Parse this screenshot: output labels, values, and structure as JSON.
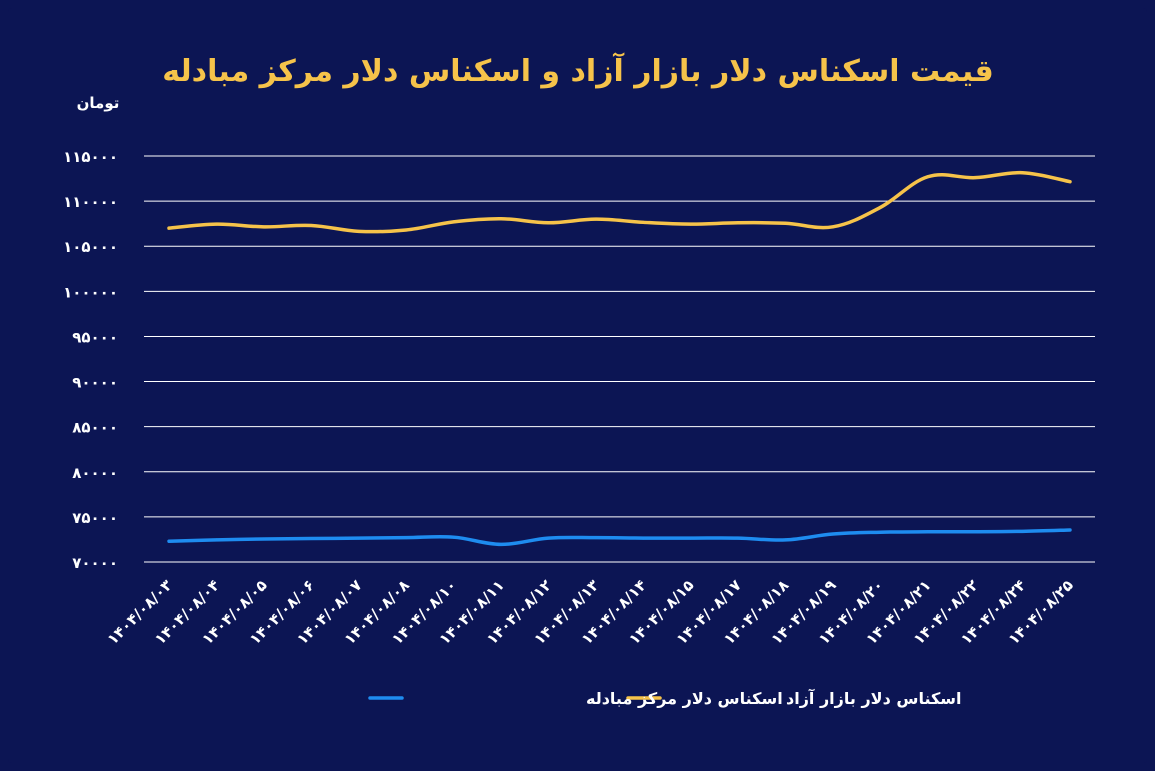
{
  "chart_data": {
    "type": "line",
    "title": "قیمت اسکناس دلار بازار آزاد و اسکناس دلار مرکز مبادله",
    "ylabel": "تومان",
    "xlabel": "",
    "ylim": [
      70000,
      115000
    ],
    "yticks": [
      70000,
      75000,
      80000,
      85000,
      90000,
      95000,
      100000,
      105000,
      110000,
      115000
    ],
    "ytick_labels": [
      "۷۰۰۰۰",
      "۷۵۰۰۰",
      "۸۰۰۰۰",
      "۸۵۰۰۰",
      "۹۰۰۰۰",
      "۹۵۰۰۰",
      "۱۰۰۰۰۰",
      "۱۰۵۰۰۰",
      "۱۱۰۰۰۰",
      "۱۱۵۰۰۰"
    ],
    "categories": [
      "۱۴۰۴/۰۸/۰۳",
      "۱۴۰۴/۰۸/۰۴",
      "۱۴۰۴/۰۸/۰۵",
      "۱۴۰۴/۰۸/۰۶",
      "۱۴۰۴/۰۸/۰۷",
      "۱۴۰۴/۰۸/۰۸",
      "۱۴۰۴/۰۸/۱۰",
      "۱۴۰۴/۰۸/۱۱",
      "۱۴۰۴/۰۸/۱۲",
      "۱۴۰۴/۰۸/۱۳",
      "۱۴۰۴/۰۸/۱۴",
      "۱۴۰۴/۰۸/۱۵",
      "۱۴۰۴/۰۸/۱۷",
      "۱۴۰۴/۰۸/۱۸",
      "۱۴۰۴/۰۸/۱۹",
      "۱۴۰۴/۰۸/۲۰",
      "۱۴۰۴/۰۸/۲۱",
      "۱۴۰۴/۰۸/۲۲",
      "۱۴۰۴/۰۸/۲۴",
      "۱۴۰۴/۰۸/۲۵"
    ],
    "series": [
      {
        "name": "اسکناس دلار مرکز مبادله",
        "color": "#1e8cf0",
        "values": [
          72300,
          72450,
          72550,
          72600,
          72650,
          72700,
          72750,
          71950,
          72650,
          72700,
          72650,
          72650,
          72650,
          72450,
          73100,
          73300,
          73350,
          73350,
          73400,
          73550
        ]
      },
      {
        "name": "اسکناس دلار بازار آزاد",
        "color": "#f6c34a",
        "values": [
          107000,
          107450,
          107150,
          107300,
          106650,
          106800,
          107700,
          108050,
          107600,
          108000,
          107650,
          107450,
          107600,
          107550,
          107150,
          109300,
          112700,
          112600,
          113150,
          112150
        ]
      }
    ],
    "legend": "bottom",
    "grid": true
  }
}
